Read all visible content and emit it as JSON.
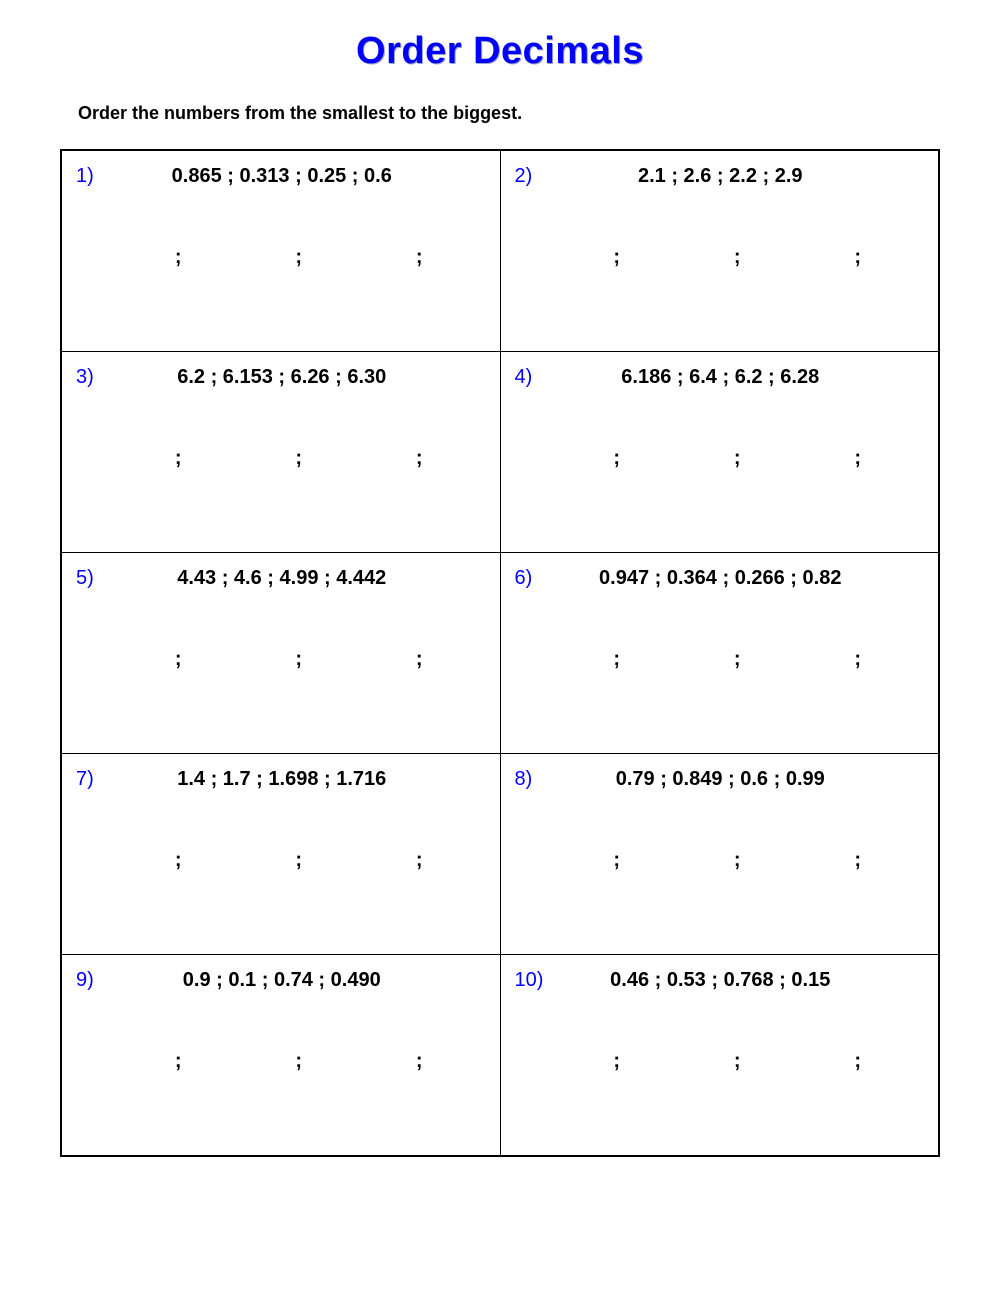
{
  "title": "Order Decimals",
  "title_color": "#0000ff",
  "title_fontsize": 38,
  "instruction": "Order the numbers from the smallest to the biggest.",
  "instruction_fontsize": 18,
  "border_color": "#000000",
  "number_color": "#0000ff",
  "text_color": "#000000",
  "value_fontsize": 20,
  "separator": ";",
  "answer_separator": ";",
  "questions": [
    {
      "n": "1)",
      "text": "0.865 ; 0.313 ; 0.25 ; 0.6"
    },
    {
      "n": "2)",
      "text": "2.1 ; 2.6 ; 2.2 ; 2.9"
    },
    {
      "n": "3)",
      "text": "6.2 ; 6.153 ; 6.26 ; 6.30"
    },
    {
      "n": "4)",
      "text": "6.186 ; 6.4 ; 6.2 ; 6.28"
    },
    {
      "n": "5)",
      "text": "4.43 ; 4.6 ; 4.99 ; 4.442"
    },
    {
      "n": "6)",
      "text": "0.947 ; 0.364 ; 0.266 ; 0.82"
    },
    {
      "n": "7)",
      "text": "1.4 ; 1.7 ; 1.698 ; 1.716"
    },
    {
      "n": "8)",
      "text": "0.79 ; 0.849 ; 0.6 ; 0.99"
    },
    {
      "n": "9)",
      "text": "0.9 ; 0.1 ; 0.74 ; 0.490"
    },
    {
      "n": "10)",
      "text": "0.46 ; 0.53 ; 0.768 ; 0.15"
    }
  ]
}
